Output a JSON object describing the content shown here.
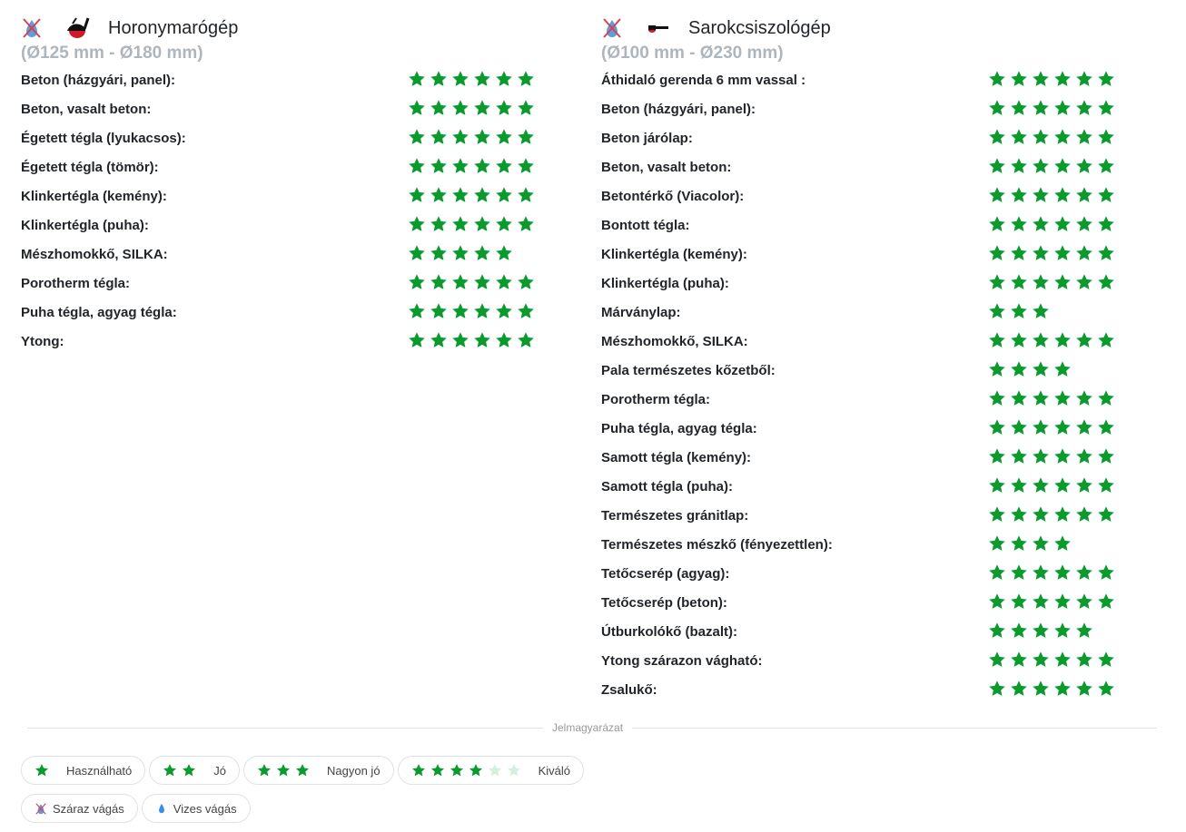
{
  "columns": [
    {
      "title": "Horonymarógép",
      "subtitle": "(Ø125 mm - Ø180 mm)",
      "cut_icon": "dry-cut-icon",
      "tool_icon": "wall-chaser-icon",
      "rows": [
        {
          "label": "Beton (házgyári, panel):",
          "stars": 6
        },
        {
          "label": "Beton, vasalt beton:",
          "stars": 6
        },
        {
          "label": "Égetett tégla (lyukacsos):",
          "stars": 6
        },
        {
          "label": "Égetett tégla (tömör):",
          "stars": 6
        },
        {
          "label": "Klinkertégla (kemény):",
          "stars": 6
        },
        {
          "label": "Klinkertégla (puha):",
          "stars": 6
        },
        {
          "label": "Mészhomokkő, SILKA:",
          "stars": 5
        },
        {
          "label": "Porotherm tégla:",
          "stars": 6
        },
        {
          "label": "Puha tégla, agyag tégla:",
          "stars": 6
        },
        {
          "label": "Ytong:",
          "stars": 6
        }
      ]
    },
    {
      "title": "Sarokcsiszológép",
      "subtitle": "(Ø100 mm - Ø230 mm)",
      "cut_icon": "dry-cut-icon",
      "tool_icon": "angle-grinder-icon",
      "rows": [
        {
          "label": "Áthidaló gerenda 6 mm vassal :",
          "stars": 6
        },
        {
          "label": "Beton (házgyári, panel):",
          "stars": 6
        },
        {
          "label": "Beton járólap:",
          "stars": 6
        },
        {
          "label": "Beton, vasalt beton:",
          "stars": 6
        },
        {
          "label": "Betontérkő (Viacolor):",
          "stars": 6
        },
        {
          "label": "Bontott tégla:",
          "stars": 6
        },
        {
          "label": "Klinkertégla (kemény):",
          "stars": 6
        },
        {
          "label": "Klinkertégla (puha):",
          "stars": 6
        },
        {
          "label": "Márványlap:",
          "stars": 3
        },
        {
          "label": "Mészhomokkő, SILKA:",
          "stars": 6
        },
        {
          "label": "Pala természetes kőzetből:",
          "stars": 4
        },
        {
          "label": "Porotherm tégla:",
          "stars": 6
        },
        {
          "label": "Puha tégla, agyag tégla:",
          "stars": 6
        },
        {
          "label": "Samott tégla (kemény):",
          "stars": 6
        },
        {
          "label": "Samott tégla (puha):",
          "stars": 6
        },
        {
          "label": "Természetes gránitlap:",
          "stars": 6
        },
        {
          "label": "Természetes mészkő (fényezettlen):",
          "stars": 4
        },
        {
          "label": "Tetőcserép (agyag):",
          "stars": 6
        },
        {
          "label": "Tetőcserép (beton):",
          "stars": 6
        },
        {
          "label": "Útburkolókő (bazalt):",
          "stars": 5
        },
        {
          "label": "Ytong szárazon vágható:",
          "stars": 6
        },
        {
          "label": "Zsalukő:",
          "stars": 6
        }
      ]
    }
  ],
  "legend": {
    "title": "Jelmagyarázat",
    "ratings": [
      {
        "label": "Használható",
        "stars": 1
      },
      {
        "label": "Jó",
        "stars": 2
      },
      {
        "label": "Nagyon jó",
        "stars": 3
      },
      {
        "label": "Kiváló",
        "stars": 4,
        "faded": 2
      }
    ],
    "cut_types": [
      {
        "label": "Száraz vágás",
        "icon": "dry-cut-icon"
      },
      {
        "label": "Vizes vágás",
        "icon": "water-drop-icon"
      }
    ]
  },
  "colors": {
    "star": "#0a9a2e",
    "star_faded": "#d4f0dc",
    "subtitle": "#adb5bd"
  }
}
